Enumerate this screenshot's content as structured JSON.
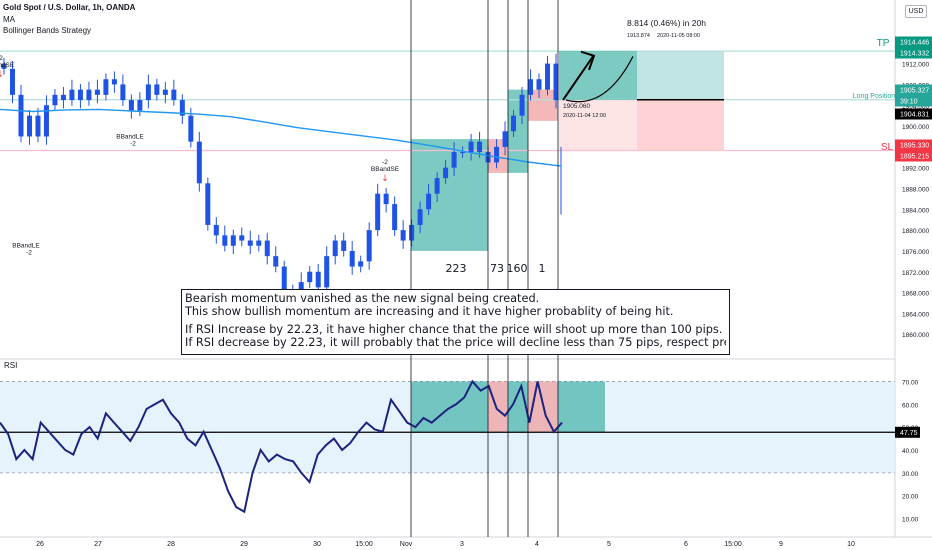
{
  "header": {
    "title": "Gold Spot / U.S. Dollar, 1h, OANDA",
    "ind1": "MA",
    "ind2": "Bollinger Bands Strategy",
    "currency": "USD"
  },
  "chart_data": [
    {
      "type": "candlestick",
      "title": "Gold Spot / U.S. Dollar, 1h, OANDA",
      "ylim": [
        1856,
        1920
      ],
      "y_ticks": [
        "1916.000",
        "1912.000",
        "1908.000",
        "1904.000",
        "1900.000",
        "1896.000",
        "1892.000",
        "1888.000",
        "1884.000",
        "1880.000",
        "1876.000",
        "1872.000",
        "1868.000",
        "1864.000",
        "1860.000"
      ],
      "price_labels": [
        {
          "text": "1914.446",
          "color": "#089981",
          "price": 1914.446
        },
        {
          "text": "1914.332",
          "color": "#089981",
          "price": 1914.332
        },
        {
          "text": "1905.327",
          "color": "#26a69a",
          "price": 1905.327
        },
        {
          "text": "39:10",
          "color": "#26a69a",
          "price": 1905.327
        },
        {
          "text": "1904.831",
          "color": "#000000",
          "price": 1904.831
        },
        {
          "text": "1895.330",
          "color": "#f23645",
          "price": 1895.33
        },
        {
          "text": "1895.215",
          "color": "#f23645",
          "price": 1895.215
        }
      ],
      "line_labels": {
        "tp": "TP",
        "sl": "SL",
        "long": "Long Position"
      },
      "levels": {
        "tp": 1914.4,
        "entry": 1905.06,
        "sl": 1895.3
      },
      "position_stats": {
        "target": "8.814 (0.46%) in 20h",
        "target_price": "1913.874",
        "target_time": "2020-11-05  08:00",
        "entry_price": "1905.060",
        "entry_time": "2020-11-04 12:00"
      },
      "zone_counts": [
        "223",
        "73",
        "160",
        "1"
      ],
      "signals": [
        {
          "text": "BBandSE",
          "qty": "-2",
          "price": 1910,
          "dir": "short"
        },
        {
          "text": "BBandLE",
          "qty": "-2",
          "price": 1898,
          "dir": "long"
        },
        {
          "text": "BBandLE",
          "qty": "-2",
          "price": 1877,
          "dir": "long"
        },
        {
          "text": "BBandSE",
          "qty": "-2",
          "price": 1890,
          "dir": "short"
        }
      ],
      "ma_values": [
        1903.2,
        1902.8,
        1903.1,
        1903.2,
        1902.9,
        1902.6,
        1902.3,
        1901.8,
        1900.8,
        1899.7,
        1898.9,
        1898.1,
        1897.3,
        1896.3,
        1895.2,
        1894.1,
        1893.1,
        1892.3
      ],
      "ohlc_closes": [
        1911,
        1906,
        1898,
        1902,
        1898,
        1904,
        1906,
        1905,
        1907,
        1905,
        1907,
        1906,
        1909,
        1908,
        1905,
        1903,
        1905,
        1908,
        1906,
        1907,
        1905,
        1902,
        1897,
        1889,
        1881,
        1879,
        1877,
        1879,
        1878,
        1877,
        1878,
        1875,
        1873,
        1868,
        1866,
        1870,
        1872,
        1869,
        1875,
        1878,
        1876,
        1873,
        1874,
        1880,
        1887,
        1885,
        1880,
        1878,
        1881,
        1884,
        1887,
        1890,
        1892,
        1895,
        1895,
        1897,
        1895,
        1893,
        1896,
        1899,
        1902,
        1906,
        1909,
        1907,
        1912,
        1905
      ],
      "x_ticks": [
        "26",
        "27",
        "28",
        "29",
        "30",
        "15:00",
        "Nov",
        "3",
        "4",
        "5",
        "6",
        "15:00",
        "9",
        "10"
      ],
      "annotation": [
        "Bearish momentum vanished as the new signal being created.",
        "This show bullish momentum are increasing and it have higher probablity of being hit.",
        "If RSI Increase by 22.23, it have higher chance that the price will shoot up more than 100 pips.",
        "If RSI decrease by 22.23, it will probably that the price will decline less than 75 pips, respect previous decline."
      ]
    },
    {
      "type": "line",
      "title": "RSI",
      "ylim": [
        5,
        75
      ],
      "y_ticks": [
        "70.00",
        "60.00",
        "50.00",
        "40.00",
        "30.00",
        "20.00",
        "10.00"
      ],
      "bands": {
        "upper": 70,
        "lower": 30
      },
      "level_line": 47.75,
      "level_label": "47.75",
      "values": [
        52,
        47,
        36,
        40,
        36,
        52,
        48,
        44,
        40,
        38,
        47,
        50,
        45,
        56,
        52,
        48,
        44,
        50,
        58,
        60,
        62,
        56,
        52,
        45,
        42,
        48,
        40,
        32,
        22,
        15,
        13,
        30,
        40,
        35,
        38,
        36,
        35,
        30,
        26,
        38,
        42,
        45,
        40,
        43,
        48,
        52,
        49,
        48,
        62,
        57,
        52,
        50,
        54,
        52,
        55,
        58,
        60,
        63,
        70,
        66,
        68,
        58,
        55,
        60,
        68,
        52,
        70,
        55,
        48,
        52
      ]
    }
  ]
}
